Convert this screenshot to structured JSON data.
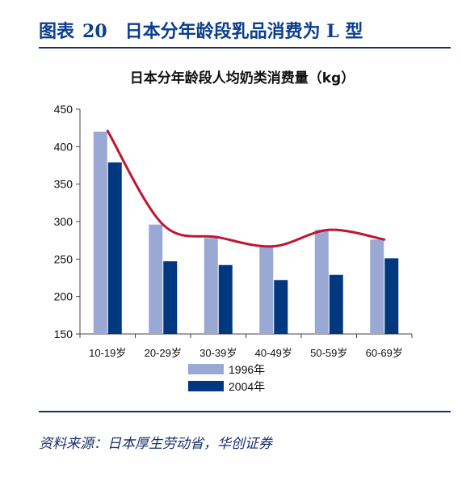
{
  "figure": {
    "label": "图表",
    "number": "20",
    "title": "日本分年龄段乳品消费为 L 型"
  },
  "source": "资料来源：日本厚生劳动省，华创证券",
  "chart_data": {
    "type": "bar",
    "title": "日本分年龄段人均奶类消费量（kg）",
    "categories": [
      "10-19岁",
      "20-29岁",
      "30-39岁",
      "40-49岁",
      "50-59岁",
      "60-69岁"
    ],
    "series": [
      {
        "name": "1996年",
        "values": [
          420,
          296,
          278,
          267,
          289,
          276
        ],
        "color": "#9aa8d4"
      },
      {
        "name": "2004年",
        "values": [
          379,
          247,
          242,
          222,
          229,
          251
        ],
        "color": "#00387f"
      }
    ],
    "trend_line": {
      "values": [
        421,
        296,
        279,
        267,
        289,
        276
      ],
      "color": "#c0152f",
      "smooth": true
    },
    "ylim": [
      150,
      450
    ],
    "yticks": [
      150,
      200,
      250,
      300,
      350,
      400,
      450
    ],
    "legend": "bottom",
    "grid": false
  }
}
